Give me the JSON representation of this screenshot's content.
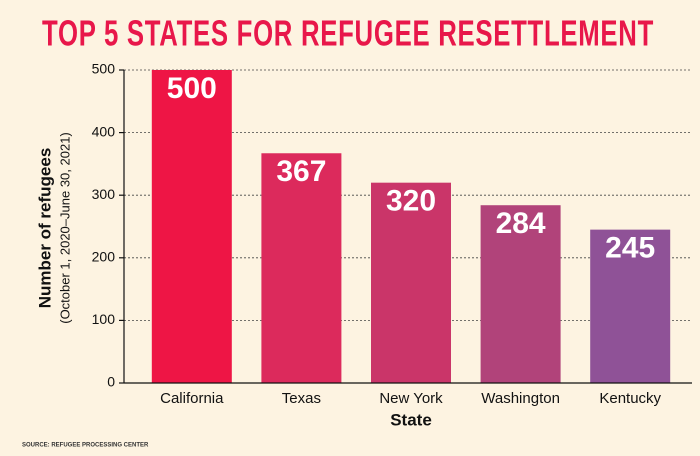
{
  "chart_data": {
    "type": "bar",
    "title": "TOP 5 STATES FOR REFUGEE RESETTLEMENT",
    "y_label": "Number of refugees",
    "y_sublabel": "(October 1, 2020–June 30, 2021)",
    "x_label": "State",
    "source": "SOURCE: REFUGEE PROCESSING CENTER",
    "categories": [
      "California",
      "Texas",
      "New York",
      "Washington",
      "Kentucky"
    ],
    "values": [
      500,
      367,
      320,
      284,
      245
    ],
    "colors": [
      "#ee1545",
      "#dc2a5c",
      "#ca3569",
      "#b1437a",
      "#8f5297"
    ],
    "ylim": [
      0,
      500
    ],
    "yticks": [
      0,
      100,
      200,
      300,
      400,
      500
    ],
    "grid": true
  }
}
